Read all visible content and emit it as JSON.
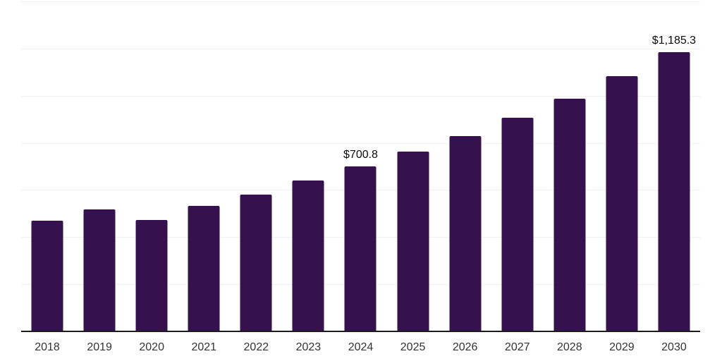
{
  "chart": {
    "background_color": "#ffffff",
    "bar_color": "#35114d",
    "gridline_color": "#f0f0f0",
    "axis_line_color": "#1c1c1c",
    "tick_label_color": "#333333",
    "data_label_color": "#0a0a0a"
  },
  "chart_data": {
    "type": "bar",
    "title": "",
    "xlabel": "",
    "ylabel": "",
    "categories": [
      "2018",
      "2019",
      "2020",
      "2021",
      "2022",
      "2023",
      "2024",
      "2025",
      "2026",
      "2027",
      "2028",
      "2029",
      "2030"
    ],
    "values": [
      470.4,
      518.2,
      473.5,
      533.1,
      580.7,
      639.4,
      700.8,
      762.4,
      830.0,
      906.2,
      988.7,
      1084.0,
      1185.3
    ],
    "data_labels": [
      "",
      "",
      "",
      "",
      "",
      "",
      "$700.8",
      "",
      "",
      "",
      "",
      "",
      "$1,185.3"
    ],
    "ylim": [
      0,
      1400
    ],
    "gridline_step": 200,
    "grid": true,
    "y_axis_labels_visible": false,
    "legend": false
  }
}
